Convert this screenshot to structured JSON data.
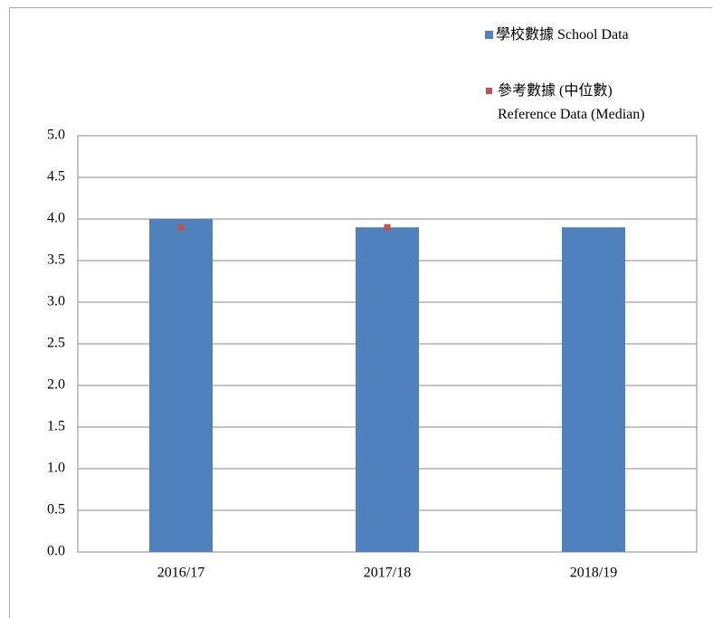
{
  "chart_data": {
    "type": "bar",
    "categories": [
      "2016/17",
      "2017/18",
      "2018/19"
    ],
    "series": [
      {
        "name": "學校數據 School Data",
        "color": "#4f81bd",
        "values": [
          4.0,
          3.9,
          3.9
        ]
      },
      {
        "name": "參考數據 (中位數)\nReference Data (Median)",
        "color": "#c0504d",
        "values": [
          3.9,
          3.9,
          null
        ],
        "marker": "square"
      }
    ],
    "ylim": [
      0,
      5
    ],
    "yticks": [
      {
        "value": 0,
        "label": "0.0"
      },
      0.5,
      {
        "value": 1,
        "label": "1.0"
      },
      1.5,
      {
        "value": 2,
        "label": "2.0"
      },
      2.5,
      {
        "value": 3,
        "label": "3.0"
      },
      3.5,
      {
        "value": 4,
        "label": "4.0"
      },
      4.5,
      {
        "value": 5,
        "label": "5.0"
      }
    ],
    "grid": true,
    "legend": "top-right"
  }
}
